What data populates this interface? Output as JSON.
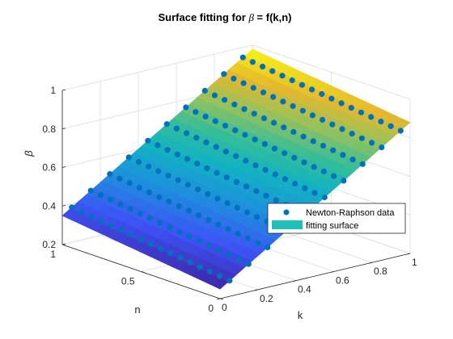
{
  "chart_data": {
    "type": "surface3d",
    "title_prefix": "Surface fitting for ",
    "title_symbol": "β",
    "title_suffix": " = f(k,n)",
    "xlabel": "k",
    "ylabel": "n",
    "zlabel": "β",
    "xlim": [
      0,
      1
    ],
    "ylim": [
      0,
      1
    ],
    "zlim": [
      0.2,
      1
    ],
    "x_ticks": [
      "0",
      "0.2",
      "0.4",
      "0.6",
      "0.8",
      "1"
    ],
    "y_ticks": [
      "0",
      "0.5",
      "1"
    ],
    "z_ticks": [
      "0.2",
      "0.4",
      "0.6",
      "0.8",
      "1"
    ],
    "grid": true,
    "legend_position": "lower-right",
    "series": [
      {
        "name": "Newton-Raphson data",
        "marker": "filled-circle",
        "color": "#0072bd",
        "k_values": [
          0.05,
          0.15,
          0.25,
          0.35,
          0.45,
          0.55,
          0.65,
          0.75,
          0.85,
          0.95
        ],
        "n_values": [
          0,
          0.0625,
          0.125,
          0.1875,
          0.25,
          0.3125,
          0.375,
          0.4375,
          0.5,
          0.5625,
          0.625,
          0.6875,
          0.75,
          0.8125,
          0.875,
          0.9375,
          1
        ]
      },
      {
        "name": "fitting surface",
        "color": "#20c0b8",
        "colormap": "parula"
      }
    ],
    "fit_model": {
      "beta0": 0.25,
      "beta_k": 0.63,
      "beta_n": 0.1
    }
  }
}
